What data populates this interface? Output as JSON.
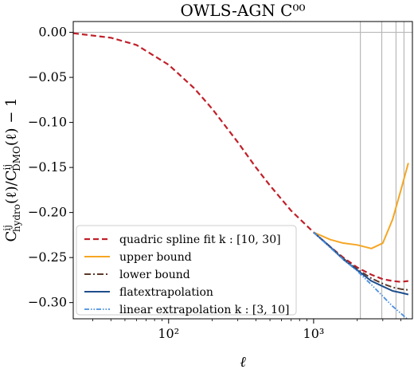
{
  "chart_data": {
    "type": "line",
    "title": "OWLS-AGN  C⁰⁰",
    "xlabel": "ℓ",
    "ylabel": "C_hydro^ij(ℓ)/C_DMO^ij(ℓ) − 1",
    "xscale": "log",
    "xlim": [
      22,
      4800
    ],
    "ylim": [
      -0.318,
      0.012
    ],
    "x_ticks": [
      {
        "value": 100,
        "label": "10²"
      },
      {
        "value": 1000,
        "label": "10³"
      }
    ],
    "y_ticks": [
      {
        "value": 0.0,
        "label": "0.00"
      },
      {
        "value": -0.05,
        "label": "−0.05"
      },
      {
        "value": -0.1,
        "label": "−0.10"
      },
      {
        "value": -0.15,
        "label": "−0.15"
      },
      {
        "value": -0.2,
        "label": "−0.20"
      },
      {
        "value": -0.25,
        "label": "−0.25"
      },
      {
        "value": -0.3,
        "label": "−0.30"
      }
    ],
    "hline": 0.0,
    "vlines": [
      2100,
      2950,
      3700,
      4200
    ],
    "grid": false,
    "legend_position": "lower-left",
    "series": [
      {
        "name": "quadric spline fit  k : [10, 30]",
        "color": "#c0202a",
        "dash": "7,4",
        "width": 2.2,
        "x": [
          22,
          40,
          60,
          100,
          150,
          200,
          300,
          400,
          500,
          700,
          1000,
          1300,
          1600,
          2000,
          2500,
          3000,
          3500,
          4000,
          4500
        ],
        "y": [
          -0.001,
          -0.006,
          -0.014,
          -0.036,
          -0.062,
          -0.085,
          -0.122,
          -0.15,
          -0.17,
          -0.198,
          -0.222,
          -0.238,
          -0.25,
          -0.261,
          -0.269,
          -0.274,
          -0.276,
          -0.277,
          -0.276
        ]
      },
      {
        "name": "upper bound",
        "color": "#f5a623",
        "dash": "",
        "width": 2.0,
        "x": [
          1000,
          1300,
          1600,
          2000,
          2500,
          3000,
          3500,
          4000,
          4500
        ],
        "y": [
          -0.222,
          -0.23,
          -0.234,
          -0.236,
          -0.24,
          -0.234,
          -0.208,
          -0.175,
          -0.145
        ]
      },
      {
        "name": "lower bound",
        "color": "#5c3a2a",
        "dash": "8,3,2,3",
        "width": 2.0,
        "x": [
          1000,
          1300,
          1600,
          2000,
          2500,
          3000,
          3500,
          4000,
          4500
        ],
        "y": [
          -0.222,
          -0.238,
          -0.251,
          -0.263,
          -0.273,
          -0.279,
          -0.283,
          -0.285,
          -0.286
        ]
      },
      {
        "name": "flatextrapolation",
        "color": "#1f4e8c",
        "dash": "",
        "width": 2.0,
        "x": [
          1000,
          1300,
          1600,
          2000,
          2500,
          3000,
          3500,
          4000,
          4500
        ],
        "y": [
          -0.222,
          -0.238,
          -0.252,
          -0.264,
          -0.276,
          -0.282,
          -0.287,
          -0.289,
          -0.291
        ]
      },
      {
        "name": "linear extrapolation  k : [3, 10]",
        "color": "#4a8fe0",
        "dash": "6,2,1.5,2,1.5,2",
        "width": 1.8,
        "x": [
          1000,
          1300,
          1600,
          2000,
          2500,
          3000,
          3500,
          4000,
          4400
        ],
        "y": [
          -0.222,
          -0.239,
          -0.252,
          -0.265,
          -0.28,
          -0.293,
          -0.304,
          -0.312,
          -0.318
        ]
      }
    ]
  }
}
